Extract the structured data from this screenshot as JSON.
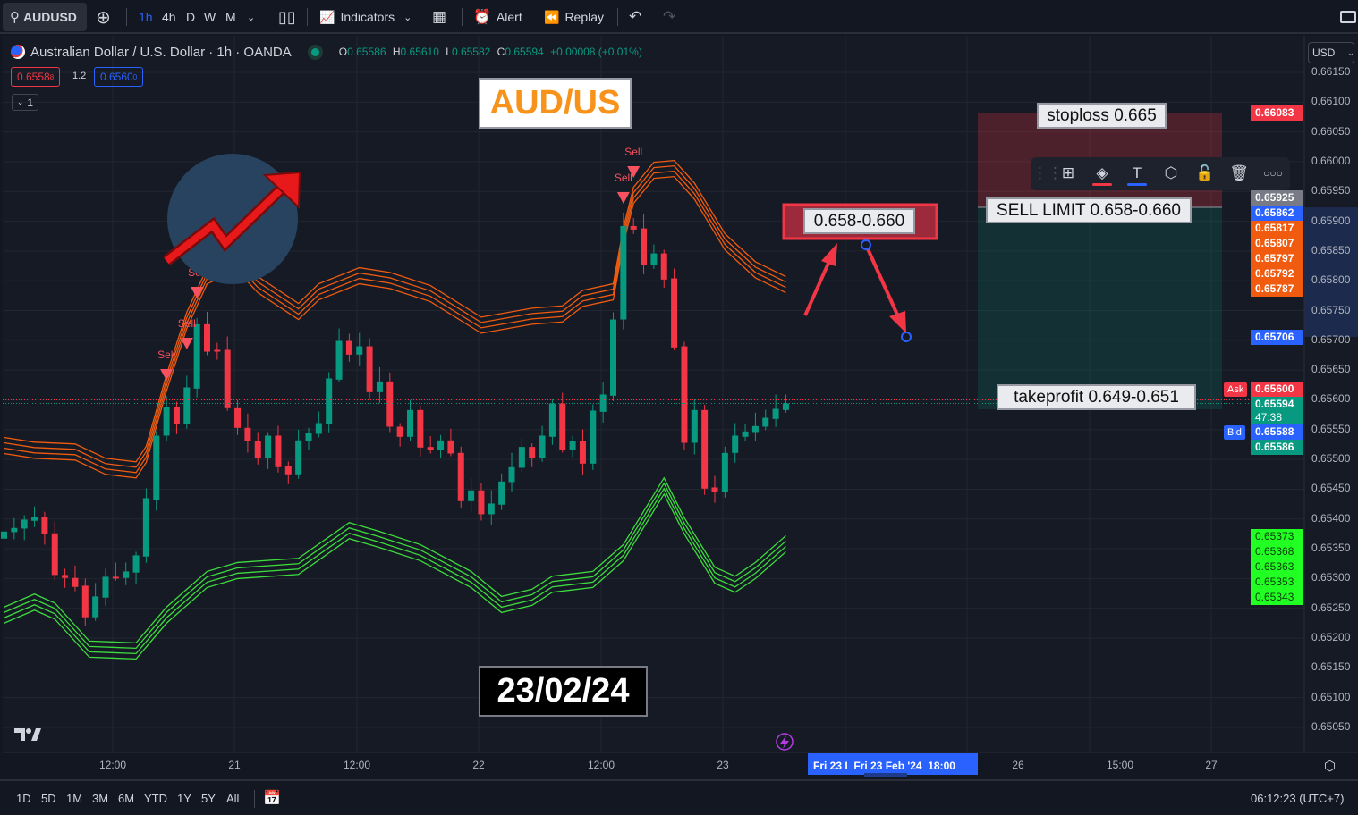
{
  "toolbar": {
    "symbol": "AUDUSD",
    "intervals": [
      "1h",
      "4h",
      "D",
      "W",
      "M"
    ],
    "active_interval": "1h",
    "indicators_label": "Indicators",
    "alert_label": "Alert",
    "replay_label": "Replay"
  },
  "legend": {
    "title": "Australian Dollar / U.S. Dollar · 1h · OANDA",
    "o_key": "O",
    "o": "0.65586",
    "h_key": "H",
    "h": "0.65610",
    "l_key": "L",
    "l": "0.65582",
    "c_key": "C",
    "c": "0.65594",
    "change": "+0.00008 (+0.01%)",
    "sell_price_main": "0.6558",
    "sell_price_pip": "8",
    "spread": "1.2",
    "buy_price_main": "0.6560",
    "buy_price_pip": "0",
    "collapse_count": "1"
  },
  "price_axis": {
    "currency": "USD",
    "ticks": [
      "0.66150",
      "0.66100",
      "0.66050",
      "0.66000",
      "0.65950",
      "0.65900",
      "0.65850",
      "0.65800",
      "0.65750",
      "0.65700",
      "0.65650",
      "0.65600",
      "0.65550",
      "0.65500",
      "0.65450",
      "0.65400",
      "0.65350",
      "0.65300",
      "0.65250",
      "0.65200",
      "0.65150",
      "0.65100",
      "0.65050"
    ],
    "markers": [
      {
        "value": "0.66083",
        "color": "#f23645"
      },
      {
        "value": "0.65925",
        "color": "#787b86"
      },
      {
        "value": "0.65862",
        "color": "#2962ff"
      },
      {
        "value": "0.65817",
        "color": "#f05b0f"
      },
      {
        "value": "0.65807",
        "color": "#f05b0f"
      },
      {
        "value": "0.65797",
        "color": "#f05b0f"
      },
      {
        "value": "0.65792",
        "color": "#f05b0f"
      },
      {
        "value": "0.65787",
        "color": "#f05b0f"
      },
      {
        "value": "0.65706",
        "color": "#2962ff"
      },
      {
        "value": "0.65600",
        "color": "#f23645",
        "tag": "Ask"
      },
      {
        "value": "0.65594",
        "color": "#089981",
        "countdown": "47:38"
      },
      {
        "value": "0.65588",
        "color": "#2962ff",
        "tag": "Bid"
      },
      {
        "value": "0.65586",
        "color": "#089981"
      },
      {
        "value": "0.65373",
        "color": "#22ff22"
      },
      {
        "value": "0.65368",
        "color": "#22ff22"
      },
      {
        "value": "0.65363",
        "color": "#22ff22"
      },
      {
        "value": "0.65353",
        "color": "#22ff22"
      },
      {
        "value": "0.65343",
        "color": "#22ff22"
      }
    ]
  },
  "time_axis": {
    "ticks": [
      "12:00",
      "21",
      "12:00",
      "22",
      "12:00",
      "23",
      "26",
      "15:00",
      "27"
    ],
    "crosshair_label_a": "Fri 23 I",
    "crosshair_label_b": "Fri 23 Feb '24",
    "crosshair_label_c": "18:00"
  },
  "annotations": {
    "pair_title": "AUD/US",
    "date_label": "23/02/24",
    "entry_zone": "0.658-0.660",
    "stoploss": "stoploss 0.665",
    "sell_limit": "SELL LIMIT 0.658-0.660",
    "takeprofit": "takeprofit 0.649-0.651"
  },
  "bottom_bar": {
    "ranges": [
      "1D",
      "5D",
      "1M",
      "3M",
      "6M",
      "YTD",
      "1Y",
      "5Y",
      "All"
    ],
    "clock": "06:12:23 (UTC+7)"
  },
  "colors": {
    "up": "#089981",
    "down": "#f23645",
    "upper_band": "#f05b0f",
    "lower_band": "#3ddc3d",
    "background": "#161a25",
    "accent": "#2962ff"
  },
  "chart_data": {
    "type": "candlestick",
    "symbol": "AUDUSD",
    "ylim": [
      0.65,
      0.662
    ],
    "candles_oc": [
      [
        0.65367,
        0.65379
      ],
      [
        0.65378,
        0.65385
      ],
      [
        0.65384,
        0.65399
      ],
      [
        0.65397,
        0.65403
      ],
      [
        0.65403,
        0.65375
      ],
      [
        0.65376,
        0.65306
      ],
      [
        0.65306,
        0.65301
      ],
      [
        0.65301,
        0.65286
      ],
      [
        0.65288,
        0.65235
      ],
      [
        0.65235,
        0.6527
      ],
      [
        0.65268,
        0.65303
      ],
      [
        0.65303,
        0.65301
      ],
      [
        0.65301,
        0.65312
      ],
      [
        0.6531,
        0.65339
      ],
      [
        0.65337,
        0.65435
      ],
      [
        0.65432,
        0.6554
      ],
      [
        0.6554,
        0.65588
      ],
      [
        0.65588,
        0.65559
      ],
      [
        0.65559,
        0.65621
      ],
      [
        0.65619,
        0.65727
      ],
      [
        0.65727,
        0.65681
      ],
      [
        0.65684,
        0.65681
      ],
      [
        0.65684,
        0.65586
      ],
      [
        0.65586,
        0.65553
      ],
      [
        0.65553,
        0.65531
      ],
      [
        0.65531,
        0.65502
      ],
      [
        0.65502,
        0.6554
      ],
      [
        0.6554,
        0.65487
      ],
      [
        0.65489,
        0.65475
      ],
      [
        0.65475,
        0.65532
      ],
      [
        0.65531,
        0.65544
      ],
      [
        0.65543,
        0.65561
      ],
      [
        0.65559,
        0.65636
      ],
      [
        0.65634,
        0.65699
      ],
      [
        0.65699,
        0.65676
      ],
      [
        0.65676,
        0.6569
      ],
      [
        0.6569,
        0.65613
      ],
      [
        0.65613,
        0.65631
      ],
      [
        0.65631,
        0.65555
      ],
      [
        0.65555,
        0.65538
      ],
      [
        0.65538,
        0.65583
      ],
      [
        0.65583,
        0.6552
      ],
      [
        0.65521,
        0.65516
      ],
      [
        0.65516,
        0.65532
      ],
      [
        0.65532,
        0.6551
      ],
      [
        0.65511,
        0.6543
      ],
      [
        0.6543,
        0.65448
      ],
      [
        0.65448,
        0.65408
      ],
      [
        0.65408,
        0.65426
      ],
      [
        0.65424,
        0.65463
      ],
      [
        0.65462,
        0.65487
      ],
      [
        0.65486,
        0.65521
      ],
      [
        0.65521,
        0.65502
      ],
      [
        0.65502,
        0.6554
      ],
      [
        0.65538,
        0.65594
      ],
      [
        0.65594,
        0.65516
      ],
      [
        0.65516,
        0.65531
      ],
      [
        0.65531,
        0.65493
      ],
      [
        0.65493,
        0.65582
      ],
      [
        0.6558,
        0.65609
      ],
      [
        0.65607,
        0.65735
      ],
      [
        0.65735,
        0.65892
      ],
      [
        0.65892,
        0.65886
      ],
      [
        0.65888,
        0.65826
      ],
      [
        0.65826,
        0.65846
      ],
      [
        0.65846,
        0.65802
      ],
      [
        0.65804,
        0.65688
      ],
      [
        0.6569,
        0.65528
      ],
      [
        0.65528,
        0.65583
      ],
      [
        0.65583,
        0.65451
      ],
      [
        0.65453,
        0.65445
      ],
      [
        0.65445,
        0.65511
      ],
      [
        0.65511,
        0.6554
      ],
      [
        0.65538,
        0.65547
      ],
      [
        0.65546,
        0.65556
      ],
      [
        0.65555,
        0.6557
      ],
      [
        0.65568,
        0.65585
      ],
      [
        0.65583,
        0.65594
      ]
    ],
    "upper_band": [
      [
        0,
        0.65537
      ],
      [
        3,
        0.65529
      ],
      [
        7,
        0.65526
      ],
      [
        10,
        0.65502
      ],
      [
        13,
        0.65496
      ],
      [
        14,
        0.65522
      ],
      [
        16,
        0.65642
      ],
      [
        18,
        0.65747
      ],
      [
        20,
        0.65822
      ],
      [
        23,
        0.65844
      ],
      [
        25,
        0.65807
      ],
      [
        29,
        0.65762
      ],
      [
        31,
        0.65795
      ],
      [
        35,
        0.65822
      ],
      [
        38,
        0.65814
      ],
      [
        42,
        0.65792
      ],
      [
        47,
        0.65739
      ],
      [
        52,
        0.65754
      ],
      [
        55,
        0.65758
      ],
      [
        57,
        0.65784
      ],
      [
        60,
        0.65795
      ],
      [
        61,
        0.65889
      ],
      [
        62,
        0.65957
      ],
      [
        64,
        0.65999
      ],
      [
        66,
        0.66002
      ],
      [
        68,
        0.65964
      ],
      [
        71,
        0.65879
      ],
      [
        74,
        0.65832
      ],
      [
        77,
        0.65807
      ]
    ],
    "lower_band": [
      [
        0,
        0.65252
      ],
      [
        3,
        0.65274
      ],
      [
        5,
        0.65259
      ],
      [
        8.4,
        0.65195
      ],
      [
        13,
        0.65192
      ],
      [
        16,
        0.65252
      ],
      [
        20,
        0.65312
      ],
      [
        23,
        0.65327
      ],
      [
        29,
        0.65334
      ],
      [
        34,
        0.65394
      ],
      [
        37,
        0.65379
      ],
      [
        41,
        0.65357
      ],
      [
        46,
        0.65312
      ],
      [
        49,
        0.6527
      ],
      [
        52,
        0.65282
      ],
      [
        54,
        0.65304
      ],
      [
        58,
        0.65312
      ],
      [
        61,
        0.65357
      ],
      [
        65,
        0.65469
      ],
      [
        67,
        0.65402
      ],
      [
        70,
        0.65319
      ],
      [
        72,
        0.65304
      ],
      [
        74,
        0.65327
      ],
      [
        77,
        0.65372
      ]
    ],
    "sell_signals": [
      {
        "index": 16,
        "label": "Sell"
      },
      {
        "index": 18,
        "label": "Sell"
      },
      {
        "index": 19,
        "label": "Sell"
      },
      {
        "index": 61,
        "label": "Sell"
      },
      {
        "index": 62,
        "label": "Sell"
      }
    ]
  }
}
